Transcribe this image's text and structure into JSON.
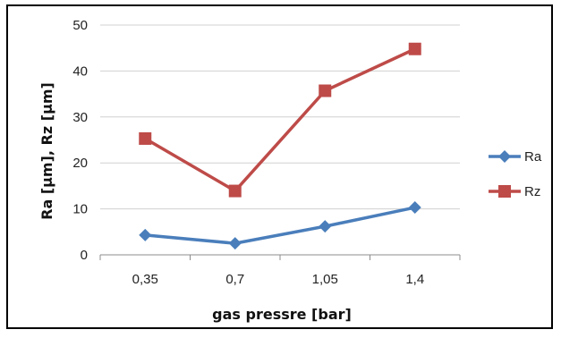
{
  "chart_data": {
    "type": "line",
    "categories": [
      "0,35",
      "0,7",
      "1,05",
      "1,4"
    ],
    "series": [
      {
        "name": "Ra",
        "values": [
          4.3,
          2.5,
          6.2,
          10.3
        ],
        "color": "#4a7ebb",
        "marker": "diamond"
      },
      {
        "name": "Rz",
        "values": [
          25.3,
          13.9,
          35.7,
          44.8
        ],
        "color": "#be4b48",
        "marker": "square"
      }
    ],
    "title": "",
    "xlabel": "gas pressre [bar]",
    "ylabel": "Ra [µm], Rz [µm]",
    "ylim": [
      0,
      50
    ],
    "yticks": [
      0,
      10,
      20,
      30,
      40,
      50
    ],
    "grid": "horizontal",
    "legend": "right"
  }
}
